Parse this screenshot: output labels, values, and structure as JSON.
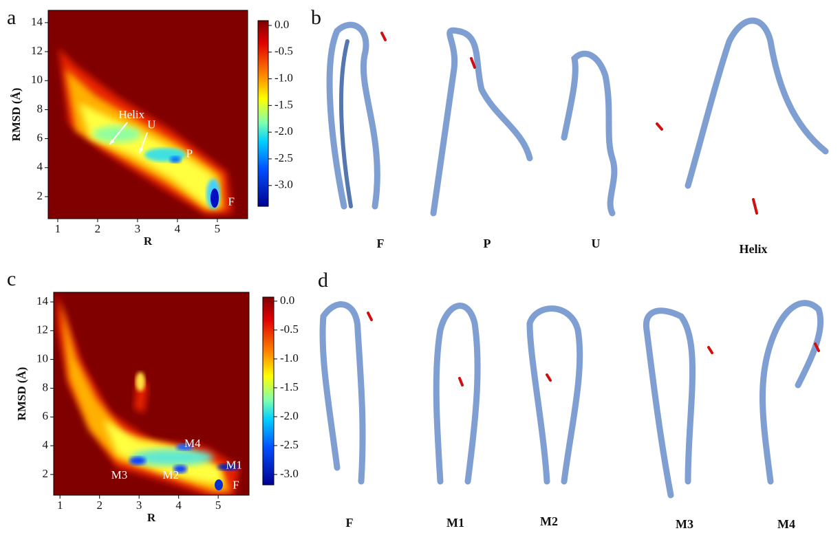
{
  "panel_labels": [
    "a",
    "b",
    "c",
    "d"
  ],
  "chart_data": [
    {
      "type": "heatmap",
      "xlabel": "R",
      "ylabel": "RMSD (Å)",
      "xlim": [
        0.76,
        5.76
      ],
      "ylim": [
        0.48,
        14.85
      ],
      "xticks": [
        1,
        2,
        3,
        4,
        5
      ],
      "yticks": [
        2,
        4,
        6,
        8,
        10,
        12,
        14
      ],
      "clim": [
        -3.39,
        0.09
      ],
      "cticks": [
        {
          "value": 0,
          "label": "0.0"
        },
        {
          "value": -0.5,
          "label": "-0.5"
        },
        {
          "value": -1,
          "label": "-1.0"
        },
        {
          "value": -1.5,
          "label": "-1.5"
        },
        {
          "value": -2,
          "label": "-2.0"
        },
        {
          "value": -2.5,
          "label": "-2.5"
        },
        {
          "value": -3,
          "label": "-3.0"
        }
      ],
      "annotations": [
        {
          "text": "Helix",
          "x": 2.85,
          "y": 7.6,
          "arrow_to": [
            2.3,
            5.6
          ]
        },
        {
          "text": "U",
          "x": 3.35,
          "y": 6.9,
          "arrow_to": [
            3.05,
            5.0
          ]
        },
        {
          "text": "P",
          "x": 4.3,
          "y": 4.9
        },
        {
          "text": "F",
          "x": 5.35,
          "y": 1.6
        }
      ]
    },
    {
      "type": "heatmap",
      "xlabel": "R",
      "ylabel": "RMSD (Å)",
      "xlim": [
        0.84,
        5.78
      ],
      "ylim": [
        0.56,
        14.67
      ],
      "xticks": [
        1,
        2,
        3,
        4,
        5
      ],
      "yticks": [
        2,
        4,
        6,
        8,
        10,
        12,
        14
      ],
      "clim": [
        -3.18,
        0.07
      ],
      "cticks": [
        {
          "value": 0,
          "label": "0.0"
        },
        {
          "value": -0.5,
          "label": "-0.5"
        },
        {
          "value": -1,
          "label": "-1.0"
        },
        {
          "value": -1.5,
          "label": "-1.5"
        },
        {
          "value": -2,
          "label": "-2.0"
        },
        {
          "value": -2.5,
          "label": "-2.5"
        },
        {
          "value": -3,
          "label": "-3.0"
        }
      ],
      "annotations": [
        {
          "text": "M4",
          "x": 4.35,
          "y": 4.1
        },
        {
          "text": "M1",
          "x": 5.4,
          "y": 2.6
        },
        {
          "text": "M3",
          "x": 2.5,
          "y": 1.9
        },
        {
          "text": "M2",
          "x": 3.8,
          "y": 1.9
        },
        {
          "text": "F",
          "x": 5.45,
          "y": 1.2
        }
      ]
    }
  ],
  "structures_b": [
    "F",
    "P",
    "U",
    "Helix"
  ],
  "structures_d": [
    "F",
    "M1",
    "M2",
    "M3",
    "M4"
  ]
}
